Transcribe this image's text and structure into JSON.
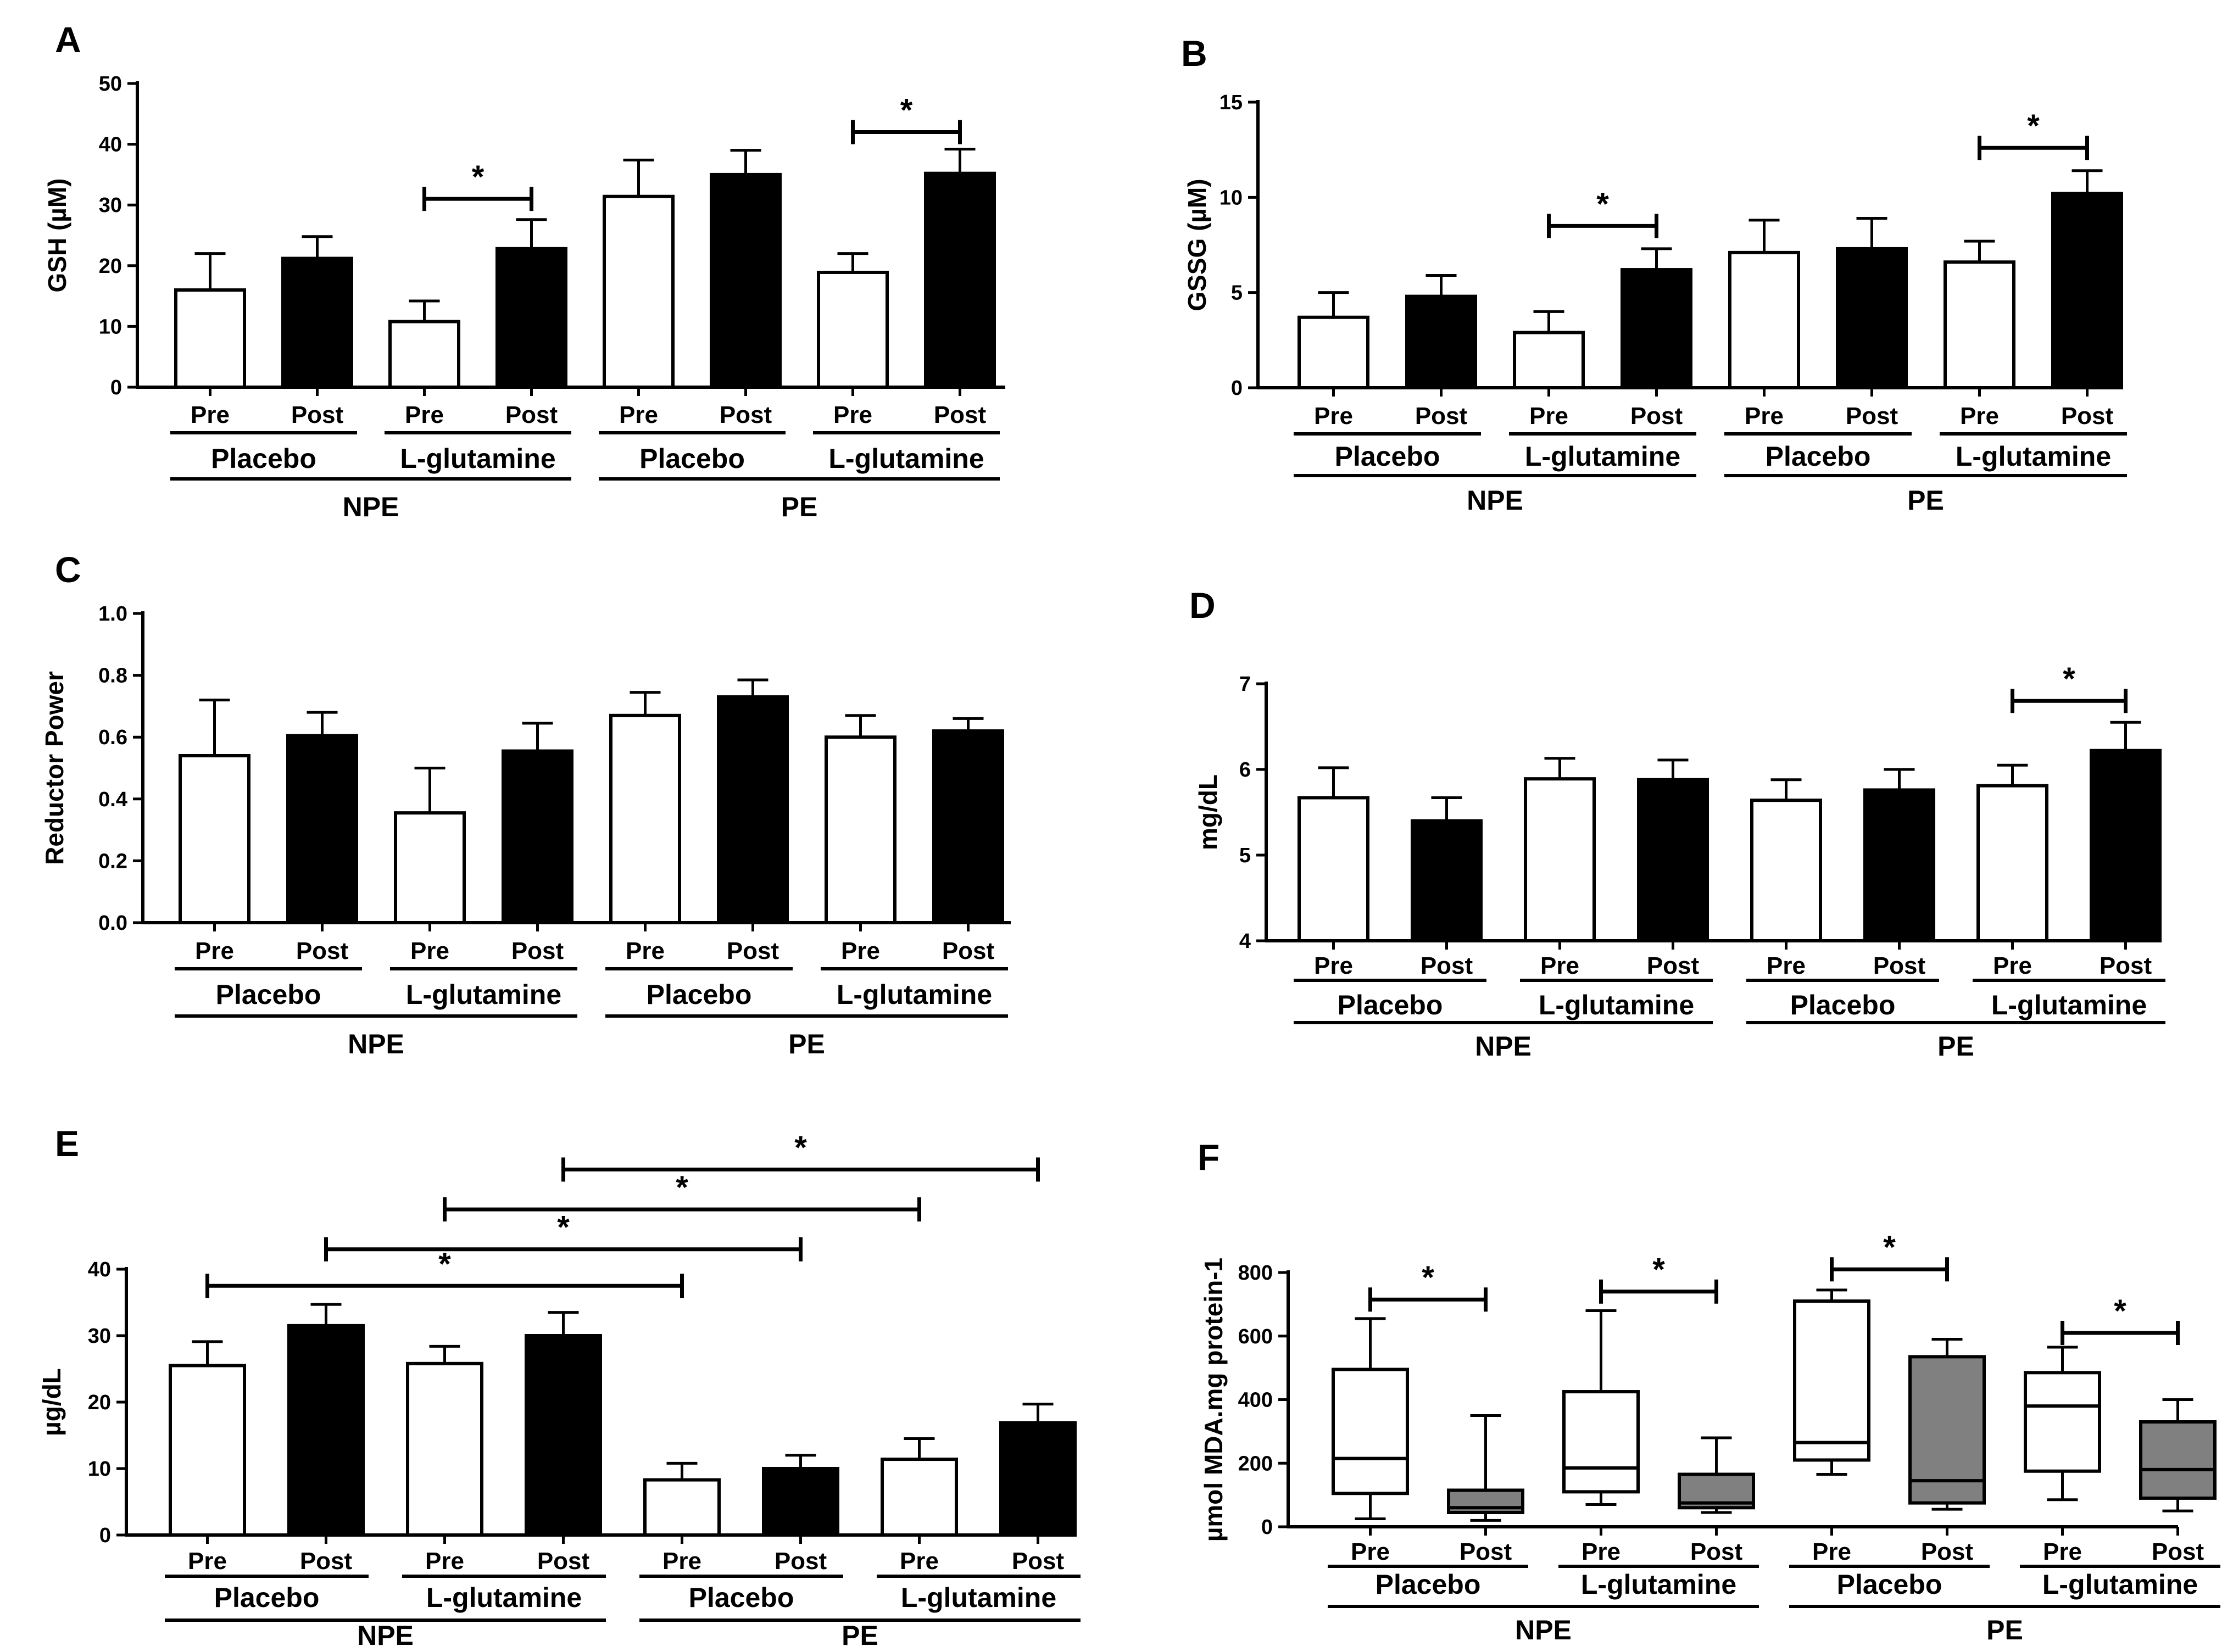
{
  "colors": {
    "pre": "#ffffff",
    "post": "#000000",
    "box_post": "#808080",
    "ink": "#000000"
  },
  "chart_data": [
    {
      "panel": "A",
      "type": "bar",
      "ylabel": "GSH (µM)",
      "ylim": [
        0,
        50
      ],
      "yticks": [
        "0",
        "10",
        "20",
        "30",
        "40",
        "50"
      ],
      "bars": [
        {
          "value": 16,
          "err": 6
        },
        {
          "value": 21.2,
          "err": 3.6
        },
        {
          "value": 10.8,
          "err": 3.4
        },
        {
          "value": 22.8,
          "err": 4.8
        },
        {
          "value": 31.4,
          "err": 6
        },
        {
          "value": 35,
          "err": 4
        },
        {
          "value": 18.9,
          "err": 3.1
        },
        {
          "value": 35.2,
          "err": 4
        }
      ],
      "sig": [
        {
          "from": 2,
          "to": 3,
          "level": 31,
          "text": "*"
        },
        {
          "from": 6,
          "to": 7,
          "level": 42,
          "text": "*"
        }
      ],
      "categories": [
        "Pre",
        "Post",
        "Pre",
        "Post",
        "Pre",
        "Post",
        "Pre",
        "Post"
      ],
      "treatments": [
        "Placebo",
        "L-glutamine",
        "Placebo",
        "L-glutamine"
      ],
      "groups": [
        "NPE",
        "PE"
      ]
    },
    {
      "panel": "B",
      "type": "bar",
      "ylabel": "GSSG (µM)",
      "ylim": [
        0,
        15
      ],
      "yticks": [
        "0",
        "5",
        "10",
        "15"
      ],
      "bars": [
        {
          "value": 3.7,
          "err": 1.3
        },
        {
          "value": 4.8,
          "err": 1.1
        },
        {
          "value": 2.9,
          "err": 1.1
        },
        {
          "value": 6.2,
          "err": 1.1
        },
        {
          "value": 7.1,
          "err": 1.7
        },
        {
          "value": 7.3,
          "err": 1.6
        },
        {
          "value": 6.6,
          "err": 1.1
        },
        {
          "value": 10.2,
          "err": 1.2
        }
      ],
      "sig": [
        {
          "from": 2,
          "to": 3,
          "level": 8.5,
          "text": "*"
        },
        {
          "from": 6,
          "to": 7,
          "level": 12.6,
          "text": "*"
        }
      ],
      "categories": [
        "Pre",
        "Post",
        "Pre",
        "Post",
        "Pre",
        "Post",
        "Pre",
        "Post"
      ],
      "treatments": [
        "Placebo",
        "L-glutamine",
        "Placebo",
        "L-glutamine"
      ],
      "groups": [
        "NPE",
        "PE"
      ]
    },
    {
      "panel": "C",
      "type": "bar",
      "ylabel": "Reductor Power",
      "ylim": [
        0,
        1
      ],
      "yticks": [
        "0.0",
        "0.2",
        "0.4",
        "0.6",
        "0.8",
        "1.0"
      ],
      "bars": [
        {
          "value": 0.54,
          "err": 0.18
        },
        {
          "value": 0.605,
          "err": 0.075
        },
        {
          "value": 0.355,
          "err": 0.145
        },
        {
          "value": 0.555,
          "err": 0.09
        },
        {
          "value": 0.67,
          "err": 0.075
        },
        {
          "value": 0.73,
          "err": 0.055
        },
        {
          "value": 0.6,
          "err": 0.07
        },
        {
          "value": 0.62,
          "err": 0.04
        }
      ],
      "sig": [],
      "categories": [
        "Pre",
        "Post",
        "Pre",
        "Post",
        "Pre",
        "Post",
        "Pre",
        "Post"
      ],
      "treatments": [
        "Placebo",
        "L-glutamine",
        "Placebo",
        "L-glutamine"
      ],
      "groups": [
        "NPE",
        "PE"
      ]
    },
    {
      "panel": "D",
      "type": "bar",
      "ylabel": "mg/dL",
      "ylim": [
        4,
        7
      ],
      "yticks": [
        "4",
        "5",
        "6",
        "7"
      ],
      "bars": [
        {
          "value": 5.67,
          "err": 0.35
        },
        {
          "value": 5.4,
          "err": 0.27
        },
        {
          "value": 5.89,
          "err": 0.24
        },
        {
          "value": 5.88,
          "err": 0.23
        },
        {
          "value": 5.64,
          "err": 0.24
        },
        {
          "value": 5.76,
          "err": 0.24
        },
        {
          "value": 5.81,
          "err": 0.24
        },
        {
          "value": 6.22,
          "err": 0.33
        }
      ],
      "sig": [
        {
          "from": 6,
          "to": 7,
          "level": 6.8,
          "text": "*"
        }
      ],
      "categories": [
        "Pre",
        "Post",
        "Pre",
        "Post",
        "Pre",
        "Post",
        "Pre",
        "Post"
      ],
      "treatments": [
        "Placebo",
        "L-glutamine",
        "Placebo",
        "L-glutamine"
      ],
      "groups": [
        "NPE",
        "PE"
      ]
    },
    {
      "panel": "E",
      "type": "bar",
      "ylabel": "µg/dL",
      "ylim": [
        0,
        40
      ],
      "yticks": [
        "0",
        "10",
        "20",
        "30",
        "40"
      ],
      "bars": [
        {
          "value": 25.5,
          "err": 3.6
        },
        {
          "value": 31.5,
          "err": 3.2
        },
        {
          "value": 25.8,
          "err": 2.6
        },
        {
          "value": 30,
          "err": 3.5
        },
        {
          "value": 8.3,
          "err": 2.5
        },
        {
          "value": 10,
          "err": 2
        },
        {
          "value": 11.4,
          "err": 3.1
        },
        {
          "value": 16.9,
          "err": 2.8
        }
      ],
      "sig": [
        {
          "from": 0,
          "to": 4,
          "level": 37.5,
          "text": "*"
        },
        {
          "from": 1,
          "to": 5,
          "level": 43,
          "text": "*"
        },
        {
          "from": 2,
          "to": 6,
          "level": 49,
          "text": "*"
        },
        {
          "from": 3,
          "to": 7,
          "level": 55,
          "text": "*"
        }
      ],
      "categories": [
        "Pre",
        "Post",
        "Pre",
        "Post",
        "Pre",
        "Post",
        "Pre",
        "Post"
      ],
      "treatments": [
        "Placebo",
        "L-glutamine",
        "Placebo",
        "L-glutamine"
      ],
      "groups": [
        "NPE",
        "PE"
      ]
    },
    {
      "panel": "F",
      "type": "box",
      "ylabel": "µmol MDA.mg protein-1",
      "ylim": [
        0,
        800
      ],
      "yticks": [
        "0",
        "200",
        "400",
        "600",
        "800"
      ],
      "boxes": [
        {
          "min": 25,
          "q1": 105,
          "median": 215,
          "q3": 495,
          "max": 655
        },
        {
          "min": 20,
          "q1": 45,
          "median": 60,
          "q3": 115,
          "max": 350
        },
        {
          "min": 70,
          "q1": 110,
          "median": 185,
          "q3": 425,
          "max": 680
        },
        {
          "min": 45,
          "q1": 60,
          "median": 75,
          "q3": 165,
          "max": 280
        },
        {
          "min": 165,
          "q1": 210,
          "median": 265,
          "q3": 710,
          "max": 745
        },
        {
          "min": 55,
          "q1": 75,
          "median": 145,
          "q3": 535,
          "max": 590
        },
        {
          "min": 85,
          "q1": 175,
          "median": 380,
          "q3": 485,
          "max": 565
        },
        {
          "min": 50,
          "q1": 90,
          "median": 180,
          "q3": 330,
          "max": 400
        }
      ],
      "sig": [
        {
          "from": 0,
          "to": 1,
          "level": 715,
          "text": "*"
        },
        {
          "from": 2,
          "to": 3,
          "level": 740,
          "text": "*"
        },
        {
          "from": 4,
          "to": 5,
          "level": 810,
          "text": "*"
        },
        {
          "from": 6,
          "to": 7,
          "level": 610,
          "text": "*"
        }
      ],
      "categories": [
        "Pre",
        "Post",
        "Pre",
        "Post",
        "Pre",
        "Post",
        "Pre",
        "Post"
      ],
      "treatments": [
        "Placebo",
        "L-glutamine",
        "Placebo",
        "L-glutamine"
      ],
      "groups": [
        "NPE",
        "PE"
      ]
    }
  ]
}
